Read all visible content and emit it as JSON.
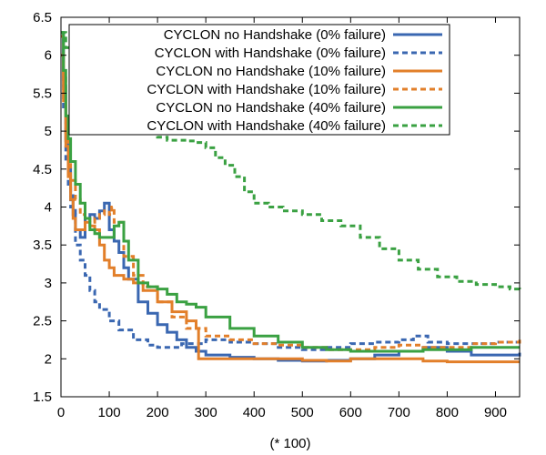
{
  "chart_data": {
    "type": "line",
    "title": "",
    "xlabel": "(* 100)",
    "ylabel": "",
    "xlim": [
      0,
      950
    ],
    "ylim": [
      1.5,
      6.5
    ],
    "xticks": [
      0,
      100,
      200,
      300,
      400,
      500,
      600,
      700,
      800,
      900
    ],
    "yticks": [
      1.5,
      2,
      2.5,
      3,
      3.5,
      4,
      4.5,
      5,
      5.5,
      6,
      6.5
    ],
    "xtick_labels": [
      "0",
      "100",
      "200",
      "300",
      "400",
      "500",
      "600",
      "700",
      "800",
      "900"
    ],
    "ytick_labels": [
      "1.5",
      "2",
      "2.5",
      "3",
      "3.5",
      "4",
      "4.5",
      "5",
      "5.5",
      "6",
      "6.5"
    ],
    "grid": false,
    "legend_position": "top-right",
    "series": [
      {
        "name": "CYCLON no Handshake (0% failure)",
        "color": "#3a67b1",
        "dash": "solid",
        "x": [
          0,
          5,
          10,
          15,
          20,
          25,
          30,
          40,
          50,
          60,
          70,
          80,
          90,
          100,
          110,
          120,
          130,
          140,
          160,
          180,
          200,
          220,
          240,
          260,
          280,
          300,
          350,
          400,
          450,
          500,
          550,
          600,
          650,
          700,
          750,
          800,
          850,
          900,
          950
        ],
        "y": [
          6.25,
          5.6,
          4.9,
          4.5,
          4.15,
          3.9,
          3.7,
          3.6,
          3.85,
          3.9,
          3.85,
          3.95,
          4.05,
          3.7,
          3.55,
          3.4,
          3.2,
          3.05,
          2.75,
          2.6,
          2.45,
          2.35,
          2.25,
          2.15,
          2.1,
          2.05,
          2.02,
          2.0,
          1.98,
          1.97,
          1.98,
          2.0,
          2.05,
          2.1,
          2.15,
          2.1,
          2.05,
          2.05,
          2.08
        ]
      },
      {
        "name": "CYCLON with Handshake (0% failure)",
        "color": "#3a67b1",
        "dash": "dashed",
        "x": [
          0,
          5,
          10,
          15,
          20,
          30,
          40,
          50,
          60,
          70,
          80,
          100,
          120,
          150,
          180,
          200,
          250,
          300,
          350,
          400,
          450,
          500,
          550,
          600,
          650,
          700,
          730,
          760,
          800,
          850,
          900,
          950
        ],
        "y": [
          6.3,
          5.3,
          4.6,
          4.3,
          4.0,
          3.5,
          3.3,
          3.1,
          2.9,
          2.75,
          2.65,
          2.5,
          2.38,
          2.25,
          2.18,
          2.15,
          2.2,
          2.25,
          2.22,
          2.2,
          2.15,
          2.12,
          2.15,
          2.2,
          2.22,
          2.25,
          2.3,
          2.22,
          2.2,
          2.2,
          2.22,
          2.25
        ]
      },
      {
        "name": "CYCLON no Handshake (10% failure)",
        "color": "#e27f2a",
        "dash": "solid",
        "x": [
          0,
          5,
          10,
          15,
          20,
          25,
          30,
          40,
          50,
          60,
          70,
          80,
          90,
          100,
          110,
          130,
          150,
          170,
          200,
          230,
          260,
          280,
          285,
          300,
          350,
          400,
          450,
          500,
          550,
          600,
          650,
          700,
          750,
          800,
          850,
          900,
          950
        ],
        "y": [
          6.0,
          5.4,
          4.8,
          4.4,
          4.1,
          3.85,
          3.7,
          3.7,
          3.8,
          3.75,
          3.7,
          3.5,
          3.3,
          3.2,
          3.1,
          3.05,
          3.0,
          2.9,
          2.75,
          2.62,
          2.5,
          2.4,
          2.0,
          2.0,
          2.0,
          2.0,
          2.0,
          1.98,
          1.97,
          2.0,
          2.0,
          2.0,
          1.97,
          1.96,
          1.96,
          1.96,
          1.96
        ]
      },
      {
        "name": "CYCLON with Handshake (10% failure)",
        "color": "#e27f2a",
        "dash": "dashed",
        "x": [
          0,
          5,
          10,
          15,
          20,
          30,
          40,
          50,
          60,
          70,
          80,
          90,
          100,
          105,
          110,
          130,
          150,
          170,
          200,
          230,
          260,
          300,
          350,
          400,
          450,
          500,
          550,
          600,
          650,
          700,
          750,
          800,
          850,
          900,
          950
        ],
        "y": [
          6.25,
          5.7,
          4.9,
          4.6,
          4.35,
          4.1,
          3.9,
          3.85,
          3.8,
          3.85,
          3.9,
          3.95,
          3.9,
          4.0,
          3.8,
          3.35,
          3.1,
          2.95,
          2.75,
          2.55,
          2.4,
          2.3,
          2.25,
          2.2,
          2.18,
          2.15,
          2.12,
          2.12,
          2.15,
          2.18,
          2.15,
          2.15,
          2.2,
          2.22,
          2.25
        ]
      },
      {
        "name": "CYCLON no Handshake (40% failure)",
        "color": "#3aa142",
        "dash": "solid",
        "x": [
          0,
          5,
          10,
          15,
          20,
          30,
          40,
          50,
          60,
          70,
          80,
          100,
          110,
          120,
          130,
          140,
          160,
          180,
          200,
          220,
          240,
          260,
          280,
          300,
          350,
          400,
          450,
          500,
          550,
          600,
          650,
          700,
          750,
          800,
          850,
          900,
          950
        ],
        "y": [
          6.3,
          5.8,
          5.2,
          4.9,
          4.6,
          4.3,
          4.05,
          3.85,
          3.7,
          3.65,
          3.6,
          3.6,
          3.75,
          3.8,
          3.55,
          3.3,
          3.0,
          2.95,
          2.92,
          2.85,
          2.75,
          2.72,
          2.68,
          2.55,
          2.4,
          2.3,
          2.22,
          2.15,
          2.12,
          2.1,
          2.1,
          2.1,
          2.12,
          2.12,
          2.15,
          2.15,
          2.15
        ]
      },
      {
        "name": "CYCLON with Handshake (40% failure)",
        "color": "#3aa142",
        "dash": "dashed",
        "x": [
          0,
          10,
          20,
          30,
          40,
          60,
          80,
          100,
          120,
          140,
          160,
          180,
          200,
          220,
          240,
          260,
          280,
          300,
          320,
          340,
          360,
          380,
          400,
          430,
          460,
          500,
          540,
          580,
          620,
          660,
          700,
          740,
          780,
          820,
          860,
          900,
          930,
          950
        ],
        "y": [
          6.3,
          6.1,
          6.0,
          6.0,
          6.0,
          5.95,
          5.85,
          5.7,
          5.5,
          5.3,
          5.1,
          4.98,
          4.92,
          4.88,
          4.88,
          4.87,
          4.85,
          4.78,
          4.65,
          4.55,
          4.4,
          4.2,
          4.05,
          4.0,
          3.95,
          3.9,
          3.82,
          3.75,
          3.6,
          3.45,
          3.3,
          3.18,
          3.08,
          3.02,
          2.98,
          2.95,
          2.92,
          2.9
        ]
      }
    ]
  }
}
